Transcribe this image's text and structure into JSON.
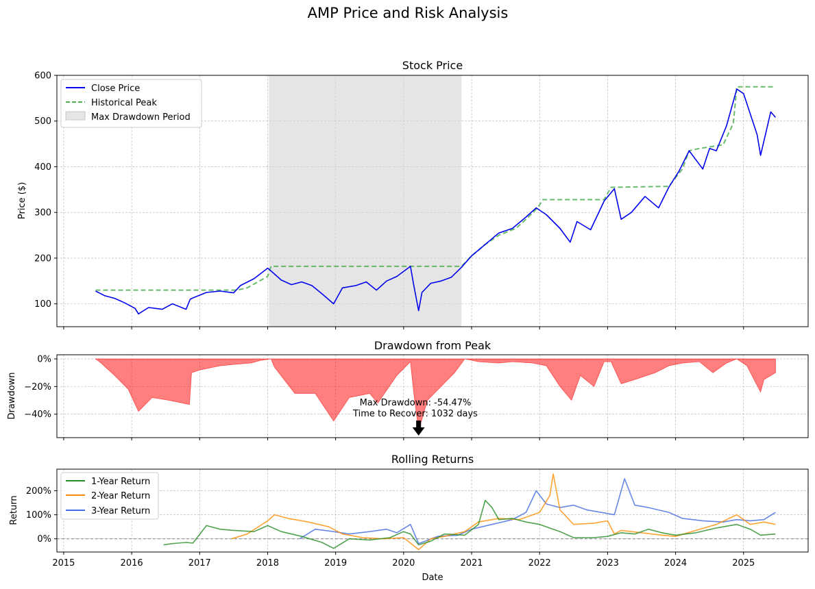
{
  "figure": {
    "suptitle": "AMP Price and Risk Analysis"
  },
  "colors": {
    "close": "#0000ee",
    "peak": "#4caf50",
    "shade": "#d3d3d3",
    "drawdown": "#ff0000",
    "ret1": "#228b22",
    "ret2": "#ff8c00",
    "ret3": "#4169e1",
    "grid": "#b0b0b0"
  },
  "chart_data": [
    {
      "type": "line",
      "title": "Stock Price",
      "ylabel": "Price ($)",
      "xlim": [
        2014.9,
        2025.95
      ],
      "ylim": [
        50,
        600
      ],
      "xticks": [
        2015,
        2016,
        2017,
        2018,
        2019,
        2020,
        2021,
        2022,
        2023,
        2024,
        2025
      ],
      "yticks": [
        100,
        200,
        300,
        400,
        500,
        600
      ],
      "ytick_labels": [
        "100",
        "200",
        "300",
        "400",
        "500",
        "600"
      ],
      "grid": true,
      "legend": {
        "placement": "top-left",
        "entries": [
          "Close Price",
          "Historical Peak",
          "Max Drawdown Period"
        ]
      },
      "shaded_span": {
        "label": "Max Drawdown Period",
        "x": [
          2018.02,
          2020.85
        ]
      },
      "series": [
        {
          "name": "Close Price",
          "x": [
            2015.47,
            2015.6,
            2015.75,
            2015.9,
            2016.05,
            2016.1,
            2016.25,
            2016.45,
            2016.6,
            2016.8,
            2016.86,
            2016.9,
            2017.1,
            2017.3,
            2017.5,
            2017.6,
            2017.8,
            2018.0,
            2018.05,
            2018.2,
            2018.35,
            2018.5,
            2018.65,
            2018.8,
            2018.97,
            2019.1,
            2019.3,
            2019.45,
            2019.6,
            2019.75,
            2019.9,
            2020.1,
            2020.15,
            2020.22,
            2020.27,
            2020.4,
            2020.55,
            2020.7,
            2020.85,
            2021.0,
            2021.2,
            2021.4,
            2021.6,
            2021.8,
            2021.95,
            2022.1,
            2022.3,
            2022.45,
            2022.55,
            2022.75,
            2022.95,
            2023.1,
            2023.2,
            2023.35,
            2023.55,
            2023.75,
            2023.9,
            2024.05,
            2024.2,
            2024.4,
            2024.5,
            2024.6,
            2024.75,
            2024.9,
            2025.0,
            2025.2,
            2025.25,
            2025.4,
            2025.47
          ],
          "y": [
            128,
            118,
            112,
            102,
            90,
            78,
            92,
            88,
            100,
            88,
            110,
            113,
            125,
            128,
            124,
            140,
            155,
            178,
            172,
            152,
            142,
            148,
            140,
            122,
            100,
            135,
            140,
            148,
            130,
            150,
            160,
            182,
            140,
            85,
            125,
            145,
            150,
            158,
            180,
            205,
            230,
            255,
            265,
            290,
            310,
            295,
            265,
            235,
            280,
            262,
            325,
            352,
            285,
            300,
            335,
            310,
            355,
            390,
            435,
            395,
            440,
            435,
            490,
            570,
            560,
            470,
            425,
            520,
            508
          ]
        },
        {
          "name": "Historical Peak",
          "x": [
            2015.47,
            2017.55,
            2017.7,
            2018.0,
            2018.05,
            2020.85,
            2021.0,
            2021.2,
            2021.4,
            2021.65,
            2021.8,
            2021.97,
            2022.05,
            2022.95,
            2023.05,
            2023.9,
            2024.1,
            2024.2,
            2024.35,
            2024.7,
            2024.85,
            2024.9,
            2025.47
          ],
          "y": [
            130,
            130,
            135,
            160,
            182,
            182,
            205,
            230,
            250,
            265,
            285,
            310,
            328,
            328,
            355,
            357,
            395,
            435,
            440,
            448,
            495,
            575,
            575
          ]
        }
      ]
    },
    {
      "type": "area",
      "title": "Drawdown from Peak",
      "ylabel": "Drawdown",
      "xlim": [
        2014.9,
        2025.95
      ],
      "ylim": [
        -57,
        3
      ],
      "yticks": [
        0,
        -20,
        -40
      ],
      "ytick_labels": [
        "0%",
        "−20%",
        "−40%"
      ],
      "grid": true,
      "annotation": {
        "text_line1": "Max Drawdown: -54.47%",
        "text_line2": "Time to Recover: 1032 days",
        "x": 2020.22,
        "y": -54.47
      },
      "series": [
        {
          "name": "",
          "x": [
            2015.47,
            2015.55,
            2015.75,
            2015.95,
            2016.1,
            2016.3,
            2016.55,
            2016.85,
            2016.88,
            2017.0,
            2017.3,
            2017.5,
            2017.75,
            2017.9,
            2018.05,
            2018.1,
            2018.4,
            2018.7,
            2018.97,
            2019.2,
            2019.5,
            2019.62,
            2019.9,
            2020.1,
            2020.15,
            2020.22,
            2020.35,
            2020.55,
            2020.75,
            2020.9,
            2021.1,
            2021.4,
            2021.6,
            2021.9,
            2022.1,
            2022.3,
            2022.47,
            2022.6,
            2022.8,
            2022.95,
            2023.05,
            2023.2,
            2023.4,
            2023.7,
            2023.9,
            2024.1,
            2024.35,
            2024.55,
            2024.75,
            2024.9,
            2025.05,
            2025.25,
            2025.3,
            2025.47
          ],
          "y": [
            0,
            -3,
            -12,
            -22,
            -38,
            -28,
            -30,
            -33,
            -10,
            -8,
            -5,
            -4,
            -3,
            -1,
            0,
            -6,
            -25,
            -25,
            -45,
            -28,
            -25,
            -32,
            -12,
            -2,
            -25,
            -52,
            -30,
            -20,
            -10,
            0,
            -2,
            -3,
            -2,
            -3,
            -5,
            -20,
            -30,
            -12,
            -20,
            -2,
            -2,
            -18,
            -15,
            -10,
            -5,
            -3,
            -2,
            -10,
            -3,
            0,
            -5,
            -24,
            -15,
            -10
          ]
        }
      ]
    },
    {
      "type": "line",
      "title": "Rolling Returns",
      "ylabel": "Return",
      "xlabel": "Date",
      "xlim": [
        2014.9,
        2025.95
      ],
      "ylim": [
        -55,
        290
      ],
      "xticks": [
        2015,
        2016,
        2017,
        2018,
        2019,
        2020,
        2021,
        2022,
        2023,
        2024,
        2025
      ],
      "xtick_labels": [
        "2015",
        "2016",
        "2017",
        "2018",
        "2019",
        "2020",
        "2021",
        "2022",
        "2023",
        "2024",
        "2025"
      ],
      "yticks": [
        0,
        100,
        200
      ],
      "ytick_labels": [
        "0%",
        "100%",
        "200%"
      ],
      "reference_line": 0,
      "grid": true,
      "legend": {
        "placement": "top-left",
        "entries": [
          "1-Year Return",
          "2-Year Return",
          "3-Year Return"
        ]
      },
      "series": [
        {
          "name": "1-Year Return",
          "x": [
            2016.47,
            2016.6,
            2016.8,
            2016.9,
            2017.1,
            2017.3,
            2017.5,
            2017.8,
            2018.0,
            2018.2,
            2018.5,
            2018.8,
            2018.97,
            2019.2,
            2019.5,
            2019.8,
            2020.0,
            2020.1,
            2020.22,
            2020.4,
            2020.6,
            2020.9,
            2021.1,
            2021.2,
            2021.3,
            2021.4,
            2021.6,
            2021.8,
            2022.0,
            2022.3,
            2022.5,
            2022.8,
            2023.0,
            2023.2,
            2023.4,
            2023.6,
            2023.8,
            2024.0,
            2024.3,
            2024.6,
            2024.9,
            2025.1,
            2025.25,
            2025.47
          ],
          "y": [
            -25,
            -20,
            -15,
            -18,
            55,
            40,
            35,
            30,
            55,
            30,
            10,
            -15,
            -40,
            0,
            -5,
            5,
            30,
            20,
            -25,
            -10,
            20,
            15,
            60,
            160,
            130,
            80,
            85,
            70,
            60,
            30,
            5,
            5,
            10,
            25,
            20,
            40,
            25,
            15,
            25,
            45,
            60,
            40,
            15,
            20
          ]
        },
        {
          "name": "2-Year Return",
          "x": [
            2017.47,
            2017.7,
            2018.0,
            2018.1,
            2018.3,
            2018.6,
            2018.9,
            2019.1,
            2019.4,
            2019.7,
            2020.0,
            2020.22,
            2020.4,
            2020.6,
            2020.9,
            2021.1,
            2021.4,
            2021.7,
            2022.0,
            2022.15,
            2022.2,
            2022.3,
            2022.5,
            2022.8,
            2023.0,
            2023.1,
            2023.2,
            2023.5,
            2023.8,
            2024.0,
            2024.3,
            2024.6,
            2024.9,
            2025.1,
            2025.3,
            2025.47
          ],
          "y": [
            0,
            20,
            75,
            100,
            85,
            70,
            50,
            20,
            5,
            0,
            5,
            -45,
            0,
            10,
            30,
            70,
            85,
            80,
            110,
            180,
            270,
            120,
            60,
            65,
            75,
            20,
            35,
            25,
            15,
            10,
            35,
            60,
            100,
            60,
            70,
            60
          ]
        },
        {
          "name": "3-Year Return",
          "x": [
            2018.47,
            2018.7,
            2018.97,
            2019.2,
            2019.5,
            2019.75,
            2019.9,
            2020.1,
            2020.22,
            2020.5,
            2020.8,
            2021.0,
            2021.3,
            2021.6,
            2021.8,
            2021.95,
            2022.1,
            2022.3,
            2022.5,
            2022.7,
            2022.9,
            2023.1,
            2023.2,
            2023.25,
            2023.4,
            2023.6,
            2023.9,
            2024.1,
            2024.4,
            2024.7,
            2024.9,
            2025.1,
            2025.3,
            2025.47
          ],
          "y": [
            0,
            40,
            30,
            20,
            30,
            40,
            25,
            60,
            -20,
            10,
            15,
            40,
            60,
            80,
            110,
            200,
            145,
            130,
            140,
            120,
            110,
            100,
            200,
            250,
            140,
            130,
            110,
            85,
            75,
            70,
            80,
            75,
            80,
            110
          ]
        }
      ]
    }
  ]
}
